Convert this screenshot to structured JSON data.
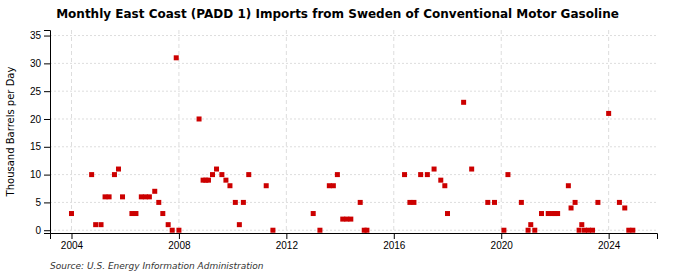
{
  "chart_data": {
    "type": "scatter",
    "title": "Monthly East Coast (PADD 1) Imports from Sweden of Conventional Motor Gasoline",
    "y_label": "Thousand Barrels per Day",
    "source": "Source: U.S. Energy Information Administration",
    "color": "#cc0000",
    "marker": "square",
    "grid": true,
    "xlim": [
      2003.2,
      2025.8
    ],
    "ylim": [
      -0.5,
      36
    ],
    "xticks": [
      2004,
      2008,
      2012,
      2016,
      2020,
      2024
    ],
    "yticks": [
      0,
      5,
      10,
      15,
      20,
      25,
      30,
      35
    ],
    "x": [
      2004.0,
      2004.75,
      2004.9,
      2005.1,
      2005.25,
      2005.4,
      2005.6,
      2005.75,
      2005.9,
      2006.25,
      2006.4,
      2006.6,
      2006.75,
      2006.9,
      2007.1,
      2007.25,
      2007.4,
      2007.6,
      2007.75,
      2007.9,
      2008.0,
      2008.75,
      2008.9,
      2009.0,
      2009.1,
      2009.25,
      2009.4,
      2009.6,
      2009.75,
      2009.9,
      2010.1,
      2010.25,
      2010.4,
      2010.6,
      2011.25,
      2011.5,
      2013.0,
      2013.25,
      2013.6,
      2013.75,
      2013.9,
      2014.1,
      2014.25,
      2014.4,
      2014.75,
      2014.9,
      2015.0,
      2016.4,
      2016.6,
      2016.75,
      2017.0,
      2017.25,
      2017.5,
      2017.75,
      2017.9,
      2018.0,
      2018.6,
      2018.9,
      2019.5,
      2019.75,
      2020.1,
      2020.25,
      2020.75,
      2021.0,
      2021.1,
      2021.25,
      2021.5,
      2021.75,
      2021.9,
      2022.0,
      2022.1,
      2022.5,
      2022.6,
      2022.75,
      2022.9,
      2023.0,
      2023.1,
      2023.25,
      2023.4,
      2023.6,
      2024.0,
      2024.4,
      2024.6,
      2024.75,
      2024.9
    ],
    "values": [
      3,
      10,
      1,
      1,
      6,
      6,
      10,
      11,
      6,
      3,
      3,
      6,
      6,
      6,
      7,
      5,
      3,
      1,
      0,
      31,
      0,
      20,
      9,
      9,
      9,
      10,
      11,
      10,
      9,
      8,
      5,
      1,
      5,
      10,
      8,
      0,
      3,
      0,
      8,
      8,
      10,
      2,
      2,
      2,
      5,
      0,
      0,
      10,
      5,
      5,
      10,
      10,
      11,
      9,
      8,
      3,
      23,
      11,
      5,
      5,
      0,
      10,
      5,
      0,
      1,
      0,
      3,
      3,
      3,
      3,
      3,
      8,
      4,
      5,
      0,
      1,
      0,
      0,
      0,
      5,
      21,
      5,
      4,
      0,
      0
    ]
  }
}
